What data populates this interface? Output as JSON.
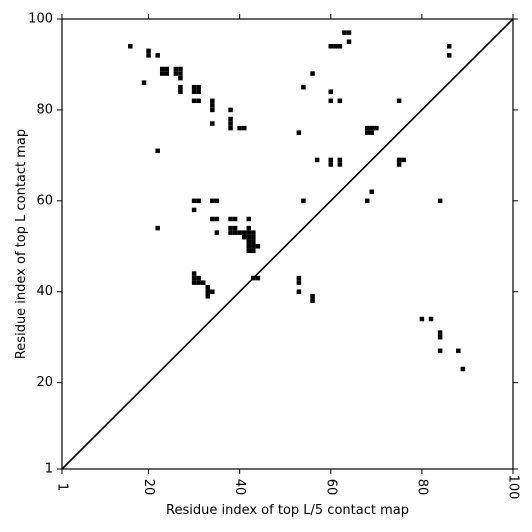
{
  "chart_data": {
    "type": "heatmap",
    "title": "",
    "xlabel": "Residue index of top L/5 contact map",
    "ylabel": "Residue index of top L contact map",
    "xlim": [
      1,
      100
    ],
    "ylim": [
      1,
      100
    ],
    "xticks": [
      1,
      20,
      40,
      60,
      80,
      100
    ],
    "yticks": [
      1,
      20,
      40,
      60,
      80,
      100
    ],
    "xtick_labels": [
      "1",
      "20",
      "40",
      "60",
      "80",
      "100"
    ],
    "ytick_labels": [
      "1",
      "20",
      "40",
      "60",
      "80",
      "100"
    ],
    "diagonal_line": true,
    "grid": false,
    "cell_color": "#000000",
    "points": [
      [
        16,
        94
      ],
      [
        20,
        93
      ],
      [
        20,
        92
      ],
      [
        22,
        92
      ],
      [
        19,
        86
      ],
      [
        23,
        89
      ],
      [
        24,
        89
      ],
      [
        23,
        88
      ],
      [
        24,
        88
      ],
      [
        26,
        89
      ],
      [
        27,
        89
      ],
      [
        26,
        88
      ],
      [
        27,
        88
      ],
      [
        27,
        87
      ],
      [
        27,
        85
      ],
      [
        27,
        84
      ],
      [
        30,
        85
      ],
      [
        31,
        85
      ],
      [
        30,
        84
      ],
      [
        31,
        84
      ],
      [
        30,
        82
      ],
      [
        31,
        82
      ],
      [
        34,
        82
      ],
      [
        34,
        81
      ],
      [
        34,
        80
      ],
      [
        34,
        77
      ],
      [
        38,
        80
      ],
      [
        38,
        78
      ],
      [
        38,
        77
      ],
      [
        38,
        76
      ],
      [
        40,
        76
      ],
      [
        41,
        76
      ],
      [
        22,
        71
      ],
      [
        22,
        54
      ],
      [
        30,
        60
      ],
      [
        31,
        60
      ],
      [
        30,
        58
      ],
      [
        34,
        60
      ],
      [
        35,
        60
      ],
      [
        34,
        56
      ],
      [
        35,
        56
      ],
      [
        35,
        53
      ],
      [
        38,
        56
      ],
      [
        39,
        56
      ],
      [
        38,
        54
      ],
      [
        39,
        54
      ],
      [
        38,
        53
      ],
      [
        39,
        53
      ],
      [
        40,
        53
      ],
      [
        41,
        53
      ],
      [
        41,
        52
      ],
      [
        42,
        56
      ],
      [
        42,
        54
      ],
      [
        42,
        53
      ],
      [
        43,
        53
      ],
      [
        42,
        52
      ],
      [
        43,
        52
      ],
      [
        42,
        51
      ],
      [
        43,
        51
      ],
      [
        42,
        50
      ],
      [
        43,
        50
      ],
      [
        44,
        50
      ],
      [
        42,
        49
      ],
      [
        43,
        49
      ],
      [
        30,
        44
      ],
      [
        30,
        43
      ],
      [
        31,
        43
      ],
      [
        30,
        42
      ],
      [
        31,
        42
      ],
      [
        32,
        42
      ],
      [
        33,
        41
      ],
      [
        33,
        40
      ],
      [
        34,
        40
      ],
      [
        33,
        39
      ],
      [
        43,
        43
      ],
      [
        44,
        43
      ],
      [
        53,
        43
      ],
      [
        53,
        42
      ],
      [
        53,
        40
      ],
      [
        56,
        39
      ],
      [
        56,
        38
      ],
      [
        53,
        75
      ],
      [
        54,
        85
      ],
      [
        56,
        88
      ],
      [
        54,
        60
      ],
      [
        57,
        69
      ],
      [
        60,
        94
      ],
      [
        61,
        94
      ],
      [
        62,
        94
      ],
      [
        63,
        97
      ],
      [
        64,
        97
      ],
      [
        64,
        95
      ],
      [
        60,
        84
      ],
      [
        60,
        82
      ],
      [
        62,
        82
      ],
      [
        60,
        69
      ],
      [
        60,
        68
      ],
      [
        62,
        69
      ],
      [
        62,
        68
      ],
      [
        68,
        76
      ],
      [
        69,
        76
      ],
      [
        70,
        76
      ],
      [
        68,
        75
      ],
      [
        69,
        75
      ],
      [
        69,
        62
      ],
      [
        68,
        60
      ],
      [
        75,
        82
      ],
      [
        75,
        69
      ],
      [
        76,
        69
      ],
      [
        75,
        68
      ],
      [
        84,
        60
      ],
      [
        86,
        94
      ],
      [
        86,
        92
      ],
      [
        80,
        34
      ],
      [
        82,
        34
      ],
      [
        84,
        31
      ],
      [
        84,
        30
      ],
      [
        84,
        27
      ],
      [
        88,
        27
      ],
      [
        89,
        23
      ]
    ]
  }
}
